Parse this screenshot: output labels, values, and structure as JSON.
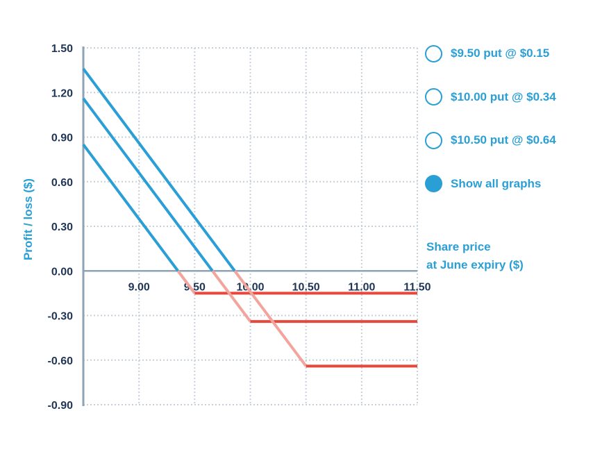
{
  "chart_data": {
    "type": "line",
    "ylabel": "Profit / loss ($)",
    "xlabel": "Share price at June expiry ($)",
    "xlabel_lines": [
      "Share price",
      "at June expiry ($)"
    ],
    "xlim": [
      8.5,
      11.5
    ],
    "ylim": [
      -0.9,
      1.5
    ],
    "x_ticks": [
      "9.00",
      "9.50",
      "10.00",
      "10.50",
      "11.00",
      "11.50"
    ],
    "y_ticks": [
      "1.50",
      "1.20",
      "0.90",
      "0.60",
      "0.30",
      "0.00",
      "-0.30",
      "-0.60",
      "-0.90"
    ],
    "grid": true,
    "series": [
      {
        "name": "$9.50 put @ $0.15",
        "strike": 9.5,
        "premium": 0.15,
        "x": [
          8.5,
          9.35,
          9.5,
          11.5
        ],
        "y": [
          0.85,
          0.0,
          -0.15,
          -0.15
        ]
      },
      {
        "name": "$10.00 put @ $0.34",
        "strike": 10.0,
        "premium": 0.34,
        "x": [
          8.5,
          9.66,
          10.0,
          11.5
        ],
        "y": [
          1.16,
          0.0,
          -0.34,
          -0.34
        ]
      },
      {
        "name": "$10.50 put @ $0.64",
        "strike": 10.5,
        "premium": 0.64,
        "x": [
          8.5,
          9.86,
          10.5,
          11.5
        ],
        "y": [
          1.36,
          0.0,
          -0.64,
          -0.64
        ]
      }
    ],
    "colors": {
      "profit": "#2a9fd6",
      "loss": "#e8473c",
      "loss_slope": "#f2a49d",
      "axis": "#8fa3b6",
      "grid": "#c5d0db"
    }
  },
  "legend": {
    "items": [
      {
        "label": "$9.50 put @ $0.15",
        "selected": false
      },
      {
        "label": "$10.00 put @ $0.34",
        "selected": false
      },
      {
        "label": "$10.50 put @ $0.64",
        "selected": false
      },
      {
        "label": "Show all graphs",
        "selected": true
      }
    ]
  }
}
